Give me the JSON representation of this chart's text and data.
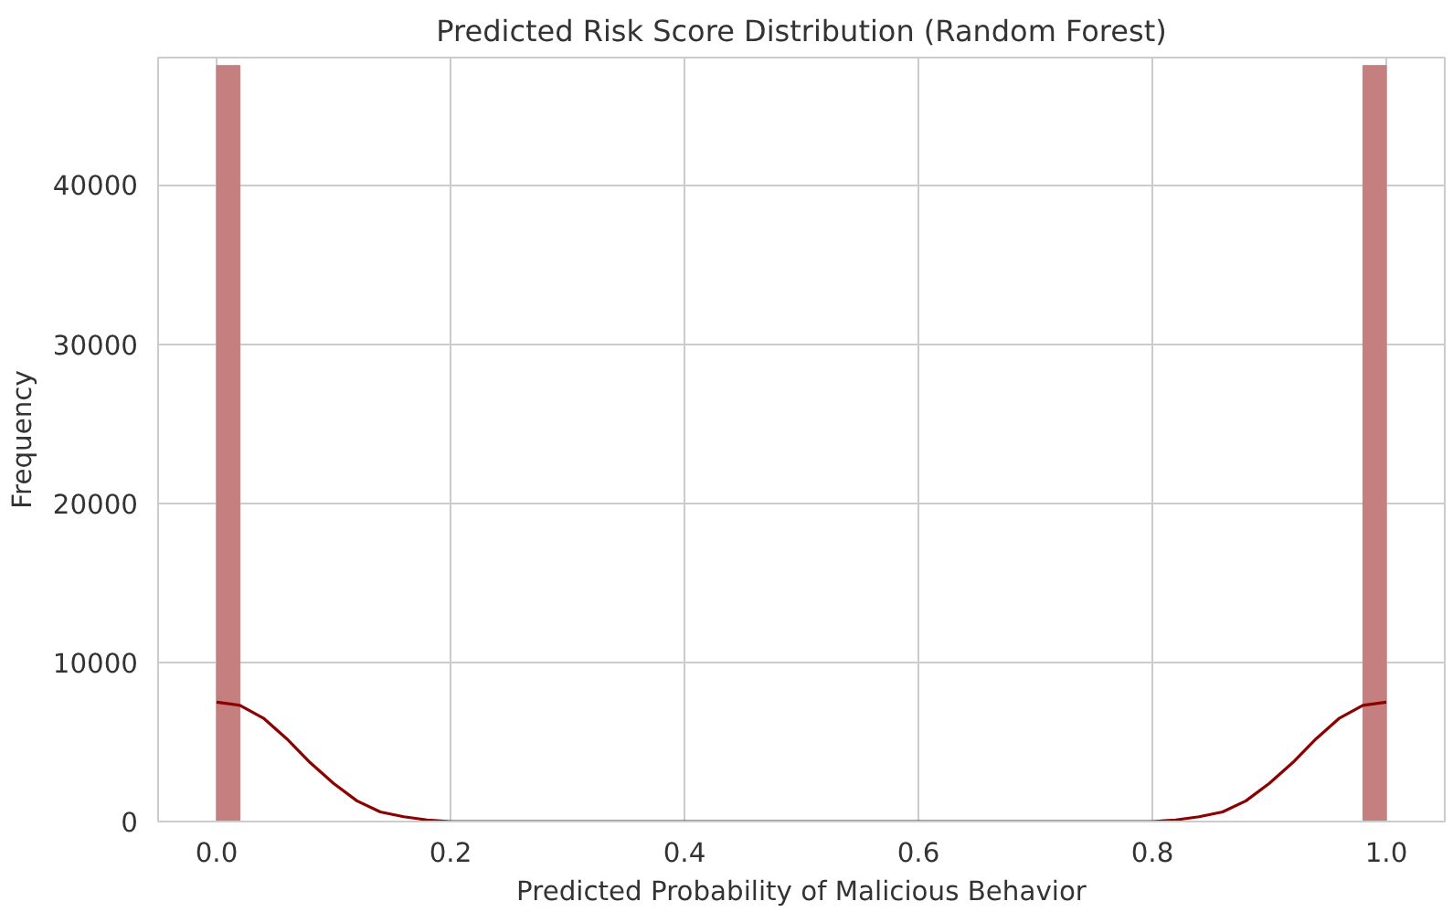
{
  "chart_data": {
    "type": "histogram",
    "title": "Predicted Risk Score Distribution (Random Forest)",
    "xlabel": "Predicted Probability of Malicious Behavior",
    "ylabel": "Frequency",
    "bins": [
      0.0,
      0.02,
      0.04,
      0.06,
      0.08,
      0.1,
      0.12,
      0.14,
      0.16,
      0.18,
      0.2,
      0.22,
      0.24,
      0.26,
      0.28,
      0.3,
      0.32,
      0.34,
      0.36,
      0.38,
      0.4,
      0.42,
      0.44,
      0.46,
      0.48,
      0.5,
      0.52,
      0.54,
      0.56,
      0.58,
      0.6,
      0.62,
      0.64,
      0.66,
      0.68,
      0.7,
      0.72,
      0.74,
      0.76,
      0.78,
      0.8,
      0.82,
      0.84,
      0.86,
      0.88,
      0.9,
      0.92,
      0.94,
      0.96,
      0.98,
      1.0
    ],
    "series": [
      {
        "color": "#c57f7f",
        "values": [
          47500,
          0,
          0,
          0,
          0,
          0,
          0,
          0,
          0,
          0,
          0,
          0,
          0,
          0,
          0,
          0,
          0,
          0,
          0,
          0,
          0,
          0,
          0,
          0,
          0,
          0,
          0,
          0,
          0,
          0,
          0,
          0,
          0,
          0,
          0,
          0,
          0,
          0,
          0,
          0,
          0,
          0,
          0,
          0,
          0,
          0,
          0,
          0,
          0,
          47500
        ]
      },
      {
        "type": "line",
        "color": "#8b0000",
        "x": [
          0.0,
          0.02,
          0.04,
          0.06,
          0.08,
          0.1,
          0.12,
          0.14,
          0.16,
          0.18,
          0.2,
          0.3,
          0.5,
          0.7,
          0.8,
          0.82,
          0.84,
          0.86,
          0.88,
          0.9,
          0.92,
          0.94,
          0.96,
          0.98,
          1.0
        ],
        "values": [
          7500,
          7300,
          6500,
          5200,
          3700,
          2400,
          1300,
          600,
          300,
          100,
          0,
          0,
          0,
          0,
          0,
          100,
          300,
          600,
          1300,
          2400,
          3700,
          5200,
          6500,
          7300,
          7500
        ]
      }
    ],
    "xlim": [
      -0.05,
      1.05
    ],
    "ylim": [
      0,
      48000
    ],
    "xticks": [
      {
        "value": 0.0,
        "label": "0.0"
      },
      {
        "value": 0.2,
        "label": "0.2"
      },
      {
        "value": 0.4,
        "label": "0.4"
      },
      {
        "value": 0.6,
        "label": "0.6"
      },
      {
        "value": 0.8,
        "label": "0.8"
      },
      {
        "value": 1.0,
        "label": "1.0"
      }
    ],
    "yticks": [
      0,
      10000,
      20000,
      30000,
      40000
    ],
    "grid": true
  }
}
